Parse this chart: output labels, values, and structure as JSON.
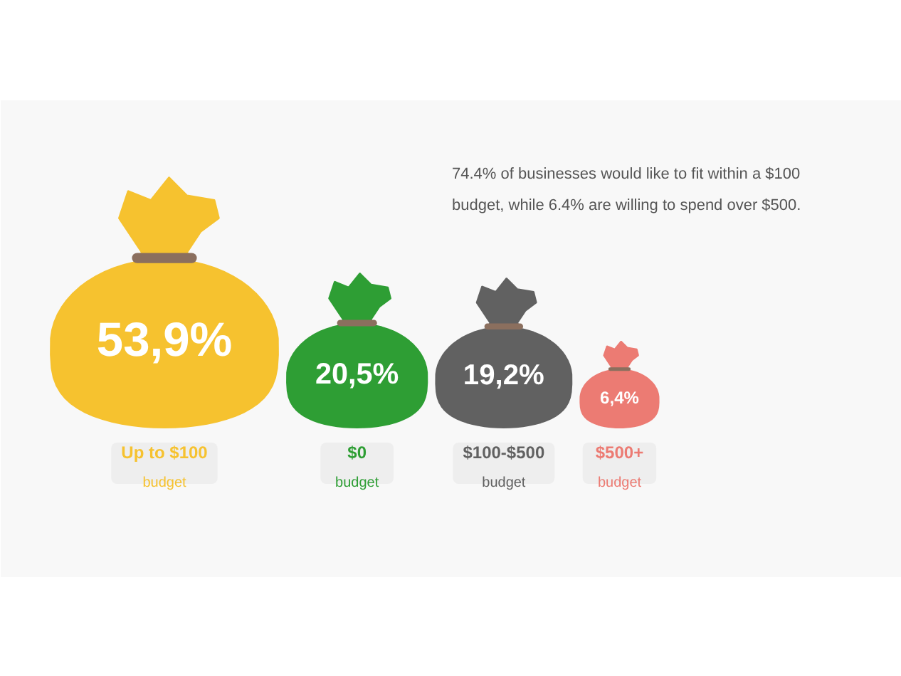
{
  "chart_data": {
    "type": "other",
    "categories": [
      "Up to $100\nbudget",
      "$0\nbudget",
      "$100-$500\nbudget",
      "$500+\nbudget"
    ],
    "values": [
      53.9,
      20.5,
      19.2,
      6.4
    ],
    "value_labels": [
      "53,9%",
      "20,5%",
      "19,2%",
      "6,4%"
    ],
    "colors": [
      "#f6c22f",
      "#2e9e34",
      "#616161",
      "#ec7b73"
    ],
    "annotations": [
      "74.4% of businesses would like to fit within a $100 budget, while 6.4% are willing to spend over $500."
    ]
  }
}
